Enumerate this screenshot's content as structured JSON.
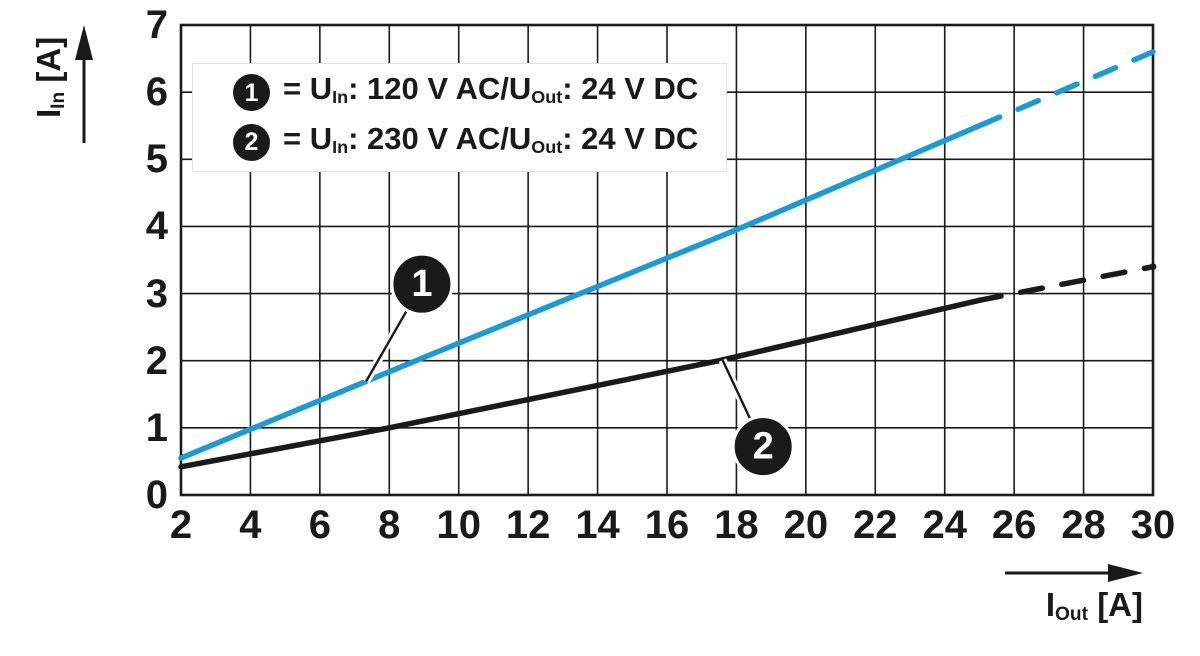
{
  "chart_data": {
    "type": "line",
    "title": "",
    "xlabel": {
      "base": "I",
      "sub": "Out",
      "unit": "[A]"
    },
    "ylabel": {
      "base": "I",
      "sub": "In",
      "unit": "[A]"
    },
    "xlim": [
      2,
      30
    ],
    "ylim": [
      0,
      7
    ],
    "xticks": [
      2,
      4,
      6,
      8,
      10,
      12,
      14,
      16,
      18,
      20,
      22,
      24,
      26,
      28,
      30
    ],
    "yticks": [
      0,
      1,
      2,
      3,
      4,
      5,
      6,
      7
    ],
    "x_grid_step": 2,
    "y_grid_step": 1,
    "grid": true,
    "axis_color": "#1a1a1a",
    "series": [
      {
        "id": "1",
        "name": "U_In: 120 V AC/U_Out: 24 V DC",
        "color": "#199bd7",
        "solid_until_x": 25,
        "end_dot": false,
        "points": [
          [
            2,
            0.55
          ],
          [
            9,
            2.05
          ],
          [
            18,
            3.95
          ],
          [
            25,
            5.5
          ],
          [
            30,
            6.6
          ]
        ]
      },
      {
        "id": "2",
        "name": "U_In: 230 V AC/U_Out: 24 V DC",
        "color": "#1a1a1a",
        "solid_until_x": 25,
        "end_dot": true,
        "points": [
          [
            2,
            0.42
          ],
          [
            8,
            1.0
          ],
          [
            17.5,
            2.0
          ],
          [
            25,
            2.9
          ],
          [
            26,
            3.0
          ],
          [
            30,
            3.4
          ]
        ]
      }
    ],
    "legend": {
      "position": "top-left",
      "entries": [
        {
          "marker": "1",
          "eq": "= U",
          "sub1": "In",
          "mid": ": 120 V AC/U",
          "sub2": "Out",
          "tail": ": 24 V DC"
        },
        {
          "marker": "2",
          "eq": "= U",
          "sub1": "In",
          "mid": ": 230 V AC/U",
          "sub2": "Out",
          "tail": ": 24 V DC"
        }
      ]
    },
    "annotations": [
      {
        "label": "1",
        "series": "1",
        "circle_at": [
          8.94,
          3.14
        ],
        "attach_at": [
          7.33,
          1.69
        ]
      },
      {
        "label": "2",
        "series": "2",
        "circle_at": [
          18.77,
          0.72
        ],
        "attach_at": [
          17.6,
          2.01
        ]
      }
    ]
  },
  "colors": {
    "line_blue": "#199bd7",
    "line_black": "#1a1a1a",
    "background": "#ffffff",
    "marker_fill": "#1a1a1a",
    "marker_text": "#ffffff"
  }
}
